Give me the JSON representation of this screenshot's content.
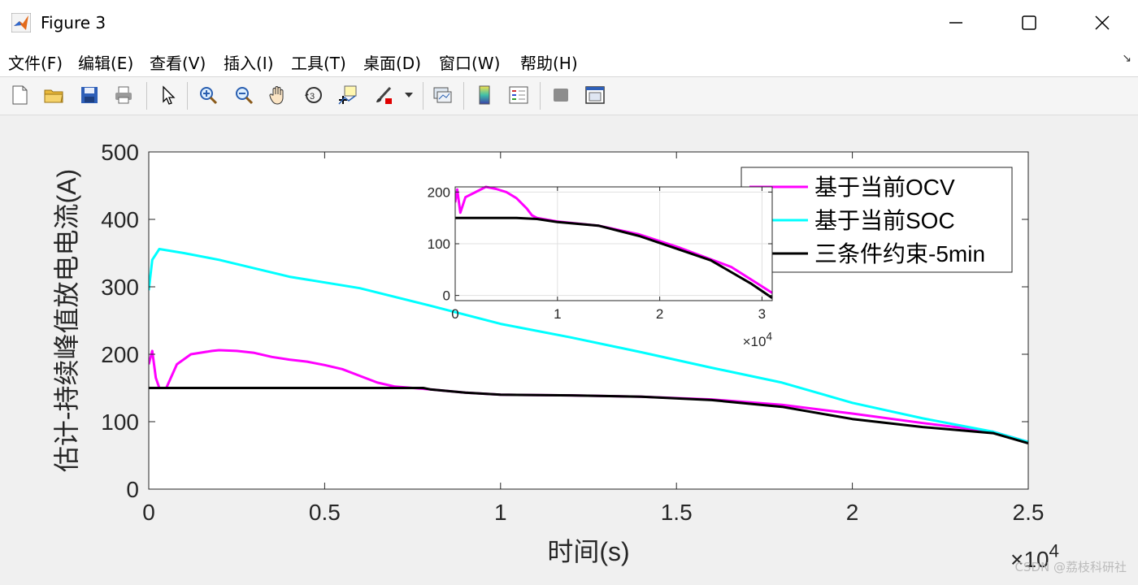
{
  "window": {
    "title": "Figure 3",
    "minimize_icon": "minimize-icon",
    "maximize_icon": "maximize-icon",
    "close_icon": "close-icon",
    "app_icon": "matlab-logo-icon"
  },
  "menu": {
    "items": [
      "文件(F)",
      "编辑(E)",
      "查看(V)",
      "插入(I)",
      "工具(T)",
      "桌面(D)",
      "窗口(W)",
      "帮助(H)"
    ],
    "corner_icon": "dock-arrow-icon"
  },
  "toolbar": {
    "buttons": [
      "new-figure-icon",
      "open-file-icon",
      "save-icon",
      "print-icon",
      "pointer-icon",
      "zoom-in-icon",
      "zoom-out-icon",
      "pan-hand-icon",
      "rotate-3d-icon",
      "data-cursor-icon",
      "brush-icon",
      "brush-dropdown-icon",
      "link-plot-icon",
      "colorbar-icon",
      "legend-icon",
      "hide-plot-tools-icon",
      "show-plot-tools-icon"
    ]
  },
  "chart_data": [
    {
      "type": "line",
      "title": "",
      "xlabel": "时间(s)",
      "ylabel": "估计-持续峰值放电电流(A)",
      "x_multiplier_label": "×10",
      "x_multiplier_exponent": "4",
      "xlim": [
        0,
        2.5
      ],
      "ylim": [
        0,
        500
      ],
      "xticks": [
        "0",
        "0.5",
        "1",
        "1.5",
        "2",
        "2.5"
      ],
      "yticks": [
        "0",
        "100",
        "200",
        "300",
        "400",
        "500"
      ],
      "grid": false,
      "legend": "top-right",
      "series": [
        {
          "name": "基于当前OCV",
          "color": "#ff00ff",
          "x": [
            0,
            0.01,
            0.02,
            0.03,
            0.05,
            0.08,
            0.12,
            0.18,
            0.2,
            0.25,
            0.3,
            0.35,
            0.4,
            0.45,
            0.5,
            0.55,
            0.6,
            0.65,
            0.7,
            0.75,
            0.8,
            0.9,
            1.0,
            1.2,
            1.4,
            1.6,
            1.8,
            2.0,
            2.2,
            2.4,
            2.5
          ],
          "y": [
            185,
            205,
            165,
            150,
            150,
            185,
            200,
            205,
            206,
            205,
            202,
            196,
            192,
            189,
            184,
            178,
            168,
            158,
            152,
            150,
            148,
            143,
            140,
            139,
            137,
            133,
            125,
            112,
            98,
            85,
            70
          ]
        },
        {
          "name": "基于当前SOC",
          "color": "#00ffff",
          "x": [
            0,
            0.01,
            0.03,
            0.1,
            0.2,
            0.4,
            0.6,
            0.8,
            1.0,
            1.2,
            1.4,
            1.6,
            1.8,
            2.0,
            2.2,
            2.4,
            2.5
          ],
          "y": [
            295,
            340,
            356,
            350,
            340,
            315,
            298,
            272,
            245,
            225,
            203,
            180,
            158,
            128,
            105,
            85,
            70
          ]
        },
        {
          "name": "三条件约束-5min",
          "color": "#000000",
          "x": [
            0,
            0.2,
            0.4,
            0.6,
            0.78,
            0.8,
            0.9,
            1.0,
            1.2,
            1.4,
            1.6,
            1.8,
            2.0,
            2.2,
            2.4,
            2.5
          ],
          "y": [
            150,
            150,
            150,
            150,
            150,
            148,
            143,
            140,
            139,
            137,
            132,
            122,
            104,
            92,
            83,
            68
          ]
        }
      ]
    },
    {
      "type": "line",
      "title": "",
      "xlabel": "",
      "ylabel": "",
      "x_multiplier_label": "×10",
      "x_multiplier_exponent": "4",
      "xlim": [
        0,
        3.1
      ],
      "ylim": [
        -10,
        210
      ],
      "xticks": [
        "0",
        "1",
        "2",
        "3"
      ],
      "yticks": [
        "0",
        "100",
        "200"
      ],
      "grid": true,
      "legend": "none",
      "series": [
        {
          "name": "",
          "color": "#ff00ff",
          "x": [
            0,
            0.02,
            0.05,
            0.1,
            0.2,
            0.3,
            0.4,
            0.5,
            0.6,
            0.7,
            0.75,
            0.8,
            1.0,
            1.4,
            1.8,
            2.2,
            2.5,
            2.7,
            2.9,
            3.1
          ],
          "y": [
            180,
            205,
            160,
            190,
            200,
            210,
            206,
            200,
            188,
            168,
            155,
            150,
            143,
            135,
            118,
            92,
            70,
            55,
            30,
            5
          ]
        },
        {
          "name": "",
          "color": "#000000",
          "x": [
            0,
            0.2,
            0.4,
            0.6,
            0.8,
            1.0,
            1.4,
            1.8,
            2.2,
            2.5,
            2.7,
            2.9,
            3.1
          ],
          "y": [
            150,
            150,
            150,
            150,
            148,
            142,
            135,
            115,
            88,
            68,
            45,
            22,
            -5
          ]
        }
      ]
    }
  ],
  "watermark": "CSDN @荔枝科研社"
}
